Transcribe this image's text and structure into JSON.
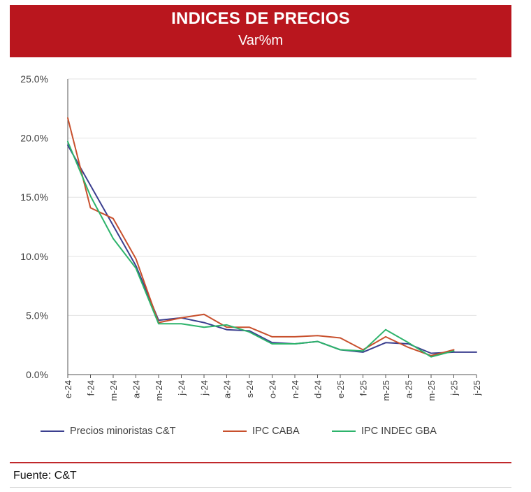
{
  "header": {
    "title": "INDICES DE PRECIOS",
    "subtitle": "Var%m",
    "bg_color": "#b9161e"
  },
  "chart_data": {
    "type": "line",
    "title": "INDICES DE PRECIOS",
    "subtitle": "Var%m",
    "xlabel": "",
    "ylabel": "",
    "categories": [
      "e-24",
      "f-24",
      "m-24",
      "a-24",
      "m-24",
      "j-24",
      "j-24",
      "a-24",
      "s-24",
      "o-24",
      "n-24",
      "d-24",
      "e-25",
      "f-25",
      "m-25",
      "a-25",
      "m-25",
      "j-25",
      "j-25"
    ],
    "y_ticks": [
      "0.0%",
      "5.0%",
      "10.0%",
      "15.0%",
      "20.0%",
      "25.0%"
    ],
    "ylim": [
      0,
      25
    ],
    "grid": "horizontal",
    "legend_position": "bottom",
    "series": [
      {
        "name": "Precios minoristas C&T",
        "color": "#3b3f8f",
        "values": [
          19.4,
          16.0,
          12.6,
          9.2,
          4.6,
          4.8,
          4.4,
          3.8,
          3.7,
          2.7,
          2.6,
          2.8,
          2.1,
          1.9,
          2.7,
          2.6,
          1.8,
          1.9,
          1.9
        ]
      },
      {
        "name": "IPC CABA",
        "color": "#c8502d",
        "values": [
          21.7,
          14.1,
          13.2,
          9.8,
          4.4,
          4.8,
          5.1,
          4.0,
          4.0,
          3.2,
          3.2,
          3.3,
          3.1,
          2.1,
          3.2,
          2.3,
          1.6,
          2.1,
          null
        ]
      },
      {
        "name": "IPC INDEC GBA",
        "color": "#2db36b",
        "values": [
          19.7,
          15.1,
          11.5,
          9.0,
          4.3,
          4.3,
          4.0,
          4.2,
          3.6,
          2.6,
          2.6,
          2.8,
          2.1,
          2.0,
          3.8,
          2.7,
          1.5,
          2.0,
          null
        ]
      }
    ]
  },
  "legend": {
    "items": [
      {
        "label": "Precios minoristas C&T",
        "color": "#3b3f8f"
      },
      {
        "label": "IPC CABA",
        "color": "#c8502d"
      },
      {
        "label": "IPC INDEC GBA",
        "color": "#2db36b"
      }
    ]
  },
  "footer": {
    "source": "Fuente: C&T",
    "rule_color": "#c0282b"
  }
}
